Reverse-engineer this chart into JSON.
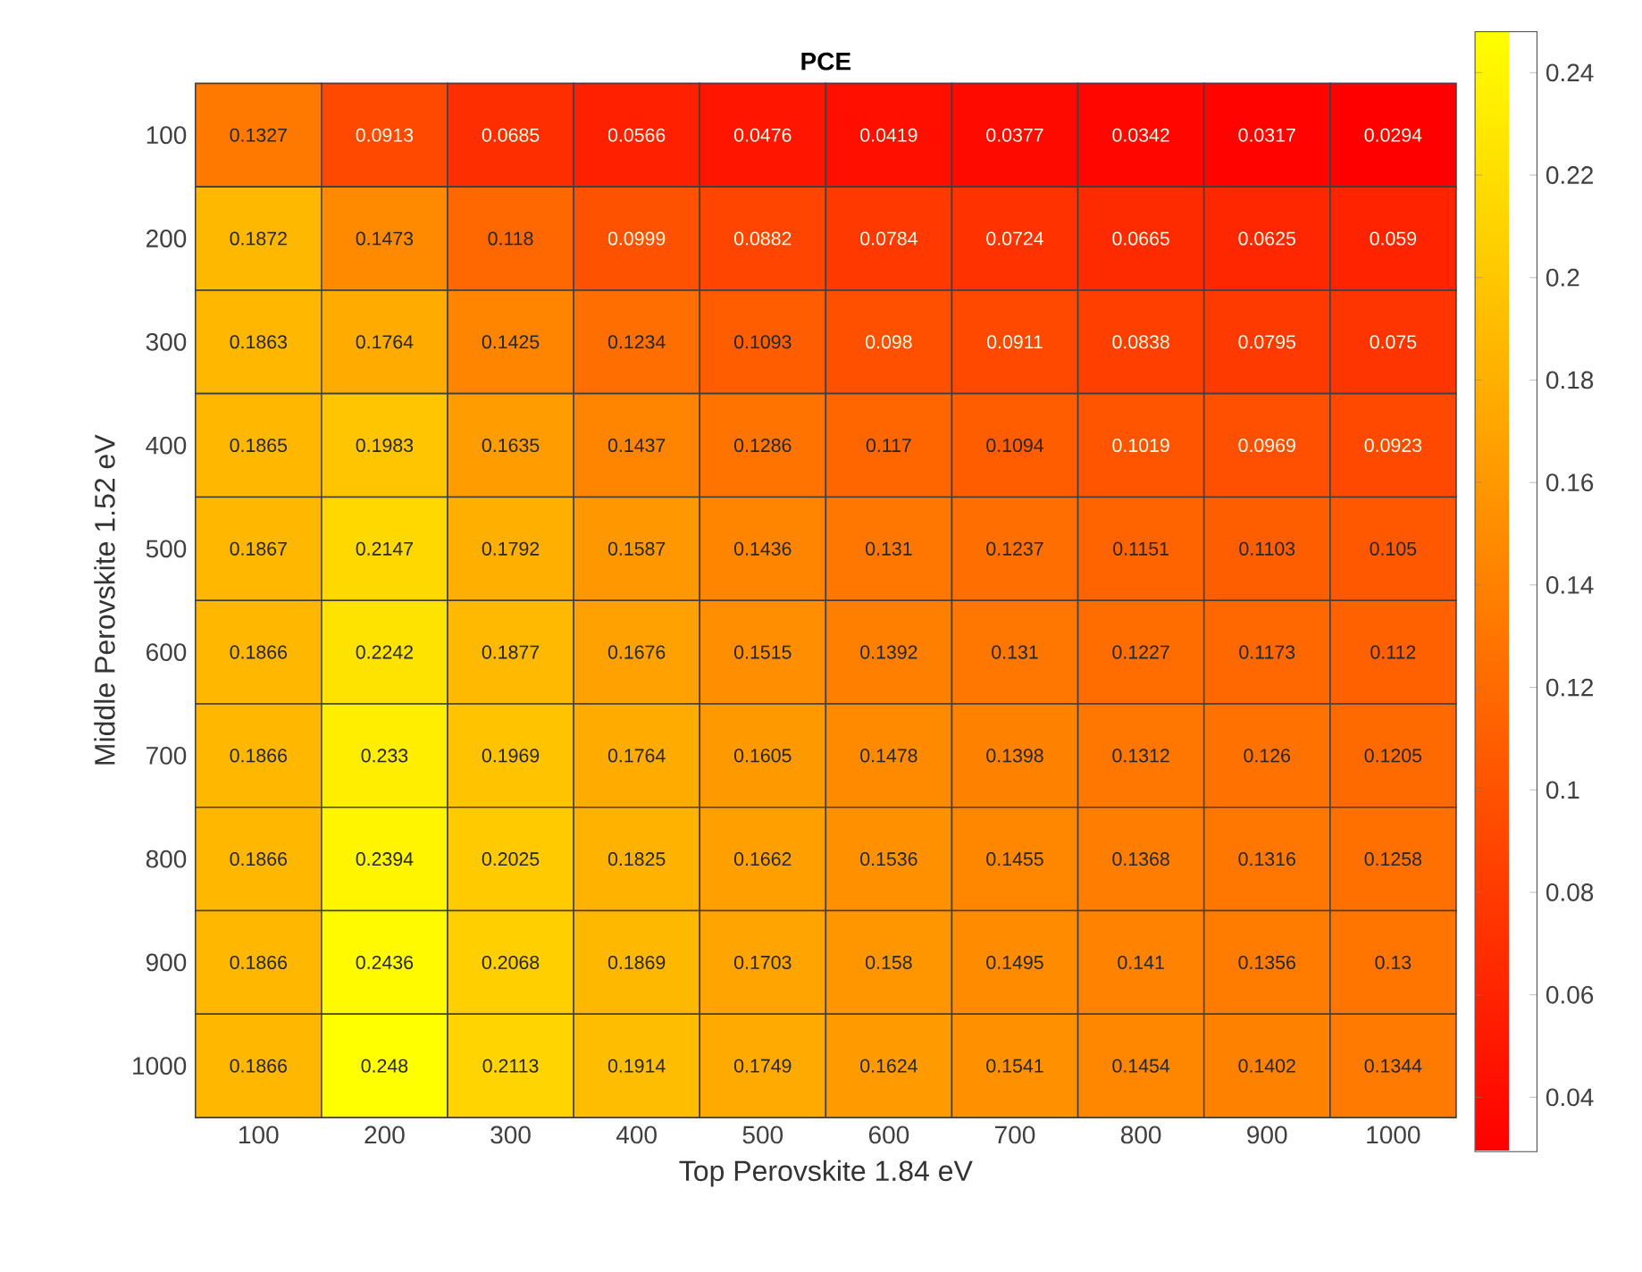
{
  "chart_data": {
    "type": "heatmap",
    "title": "PCE",
    "xlabel": "Top Perovskite 1.84 eV",
    "ylabel": "Middle Perovskite 1.52 eV",
    "categories": [
      "100",
      "200",
      "300",
      "400",
      "500",
      "600",
      "700",
      "800",
      "900",
      "1000"
    ],
    "y_categories": [
      "100",
      "200",
      "300",
      "400",
      "500",
      "600",
      "700",
      "800",
      "900",
      "1000"
    ],
    "cells": [
      [
        0.1327,
        0.0913,
        0.0685,
        0.0566,
        0.0476,
        0.0419,
        0.0377,
        0.0342,
        0.0317,
        0.0294
      ],
      [
        0.1872,
        0.1473,
        0.118,
        0.0999,
        0.0882,
        0.0784,
        0.0724,
        0.0665,
        0.0625,
        0.059
      ],
      [
        0.1863,
        0.1764,
        0.1425,
        0.1234,
        0.1093,
        0.098,
        0.0911,
        0.0838,
        0.0795,
        0.075
      ],
      [
        0.1865,
        0.1983,
        0.1635,
        0.1437,
        0.1286,
        0.117,
        0.1094,
        0.1019,
        0.0969,
        0.0923
      ],
      [
        0.1867,
        0.2147,
        0.1792,
        0.1587,
        0.1436,
        0.131,
        0.1237,
        0.1151,
        0.1103,
        0.105
      ],
      [
        0.1866,
        0.2242,
        0.1877,
        0.1676,
        0.1515,
        0.1392,
        0.131,
        0.1227,
        0.1173,
        0.112
      ],
      [
        0.1866,
        0.233,
        0.1969,
        0.1764,
        0.1605,
        0.1478,
        0.1398,
        0.1312,
        0.126,
        0.1205
      ],
      [
        0.1866,
        0.2394,
        0.2025,
        0.1825,
        0.1662,
        0.1536,
        0.1455,
        0.1368,
        0.1316,
        0.1258
      ],
      [
        0.1866,
        0.2436,
        0.2068,
        0.1869,
        0.1703,
        0.158,
        0.1495,
        0.141,
        0.1356,
        0.13
      ],
      [
        0.1866,
        0.248,
        0.2113,
        0.1914,
        0.1749,
        0.1624,
        0.1541,
        0.1454,
        0.1402,
        0.1344
      ]
    ],
    "data_labels": true,
    "clim": [
      0.0294,
      0.248
    ],
    "cticks": [
      0.04,
      0.06,
      0.08,
      0.1,
      0.12,
      0.14,
      0.16,
      0.18,
      0.2,
      0.22,
      0.24
    ]
  }
}
